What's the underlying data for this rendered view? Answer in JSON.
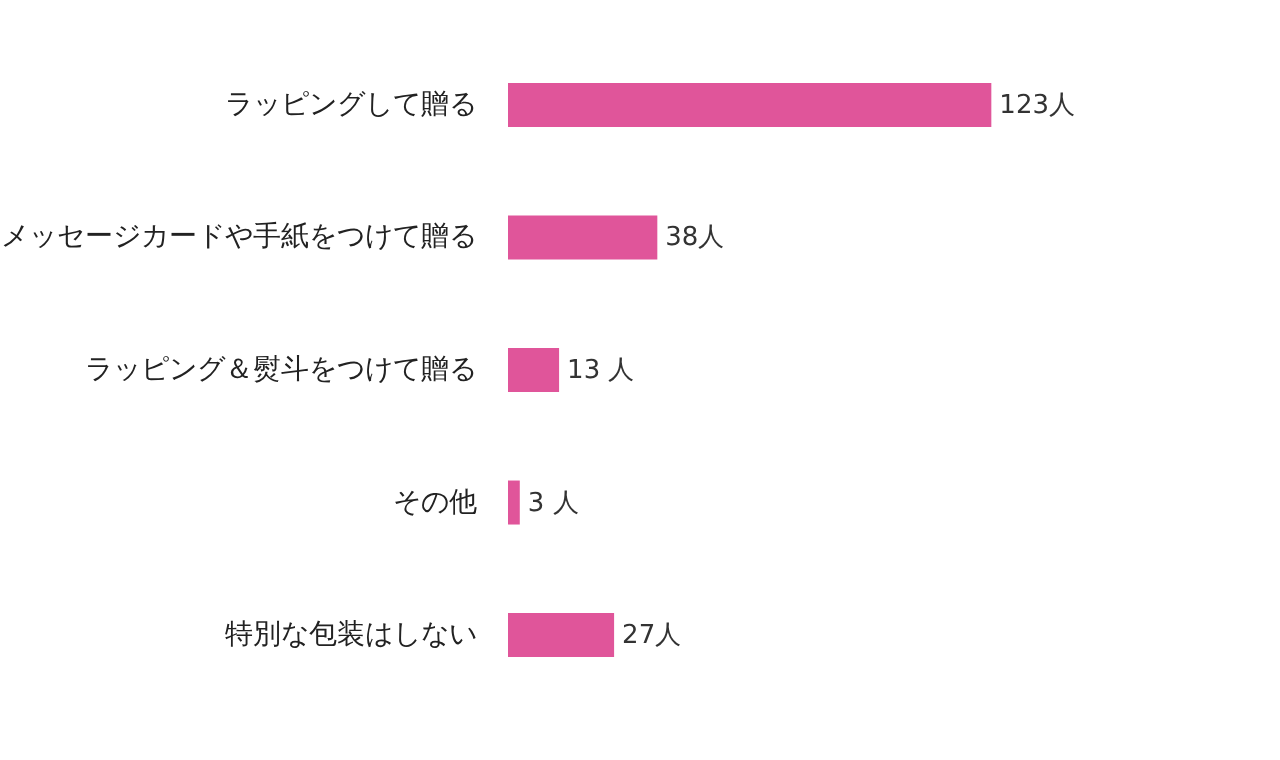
{
  "chart_data": {
    "type": "bar",
    "orientation": "horizontal",
    "categories": [
      "ラッピングして贈る",
      "メッセージカードや手紙をつけて贈る",
      "ラッピング＆熨斗をつけて贈る",
      "その他",
      "特別な包装はしない"
    ],
    "values": [
      123,
      38,
      13,
      3,
      27
    ],
    "value_labels": [
      "123人",
      "38人",
      "13 人",
      "3 人",
      "27人"
    ],
    "color": "#e0559a"
  }
}
